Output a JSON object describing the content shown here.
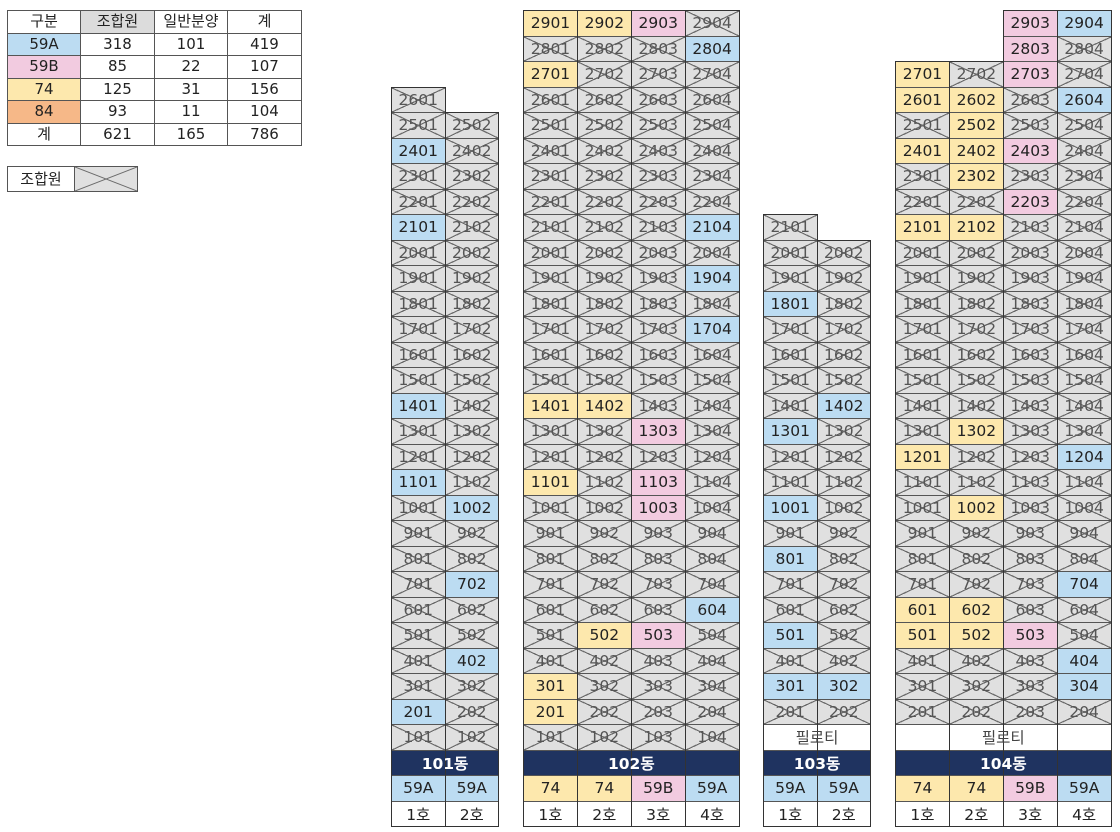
{
  "summary": {
    "header": [
      "구분",
      "조합원",
      "일반분양",
      "계"
    ],
    "rows": [
      [
        "59A",
        "318",
        "101",
        "419"
      ],
      [
        "59B",
        "85",
        "22",
        "107"
      ],
      [
        "74",
        "125",
        "31",
        "156"
      ],
      [
        "84",
        "93",
        "11",
        "104"
      ],
      [
        "계",
        "621",
        "165",
        "786"
      ]
    ]
  },
  "legend": {
    "label": "조합원"
  },
  "colors": {
    "59A": "#bcdcf2",
    "59B": "#f2cbe0",
    "74": "#fde8ad",
    "84": "#f6b888",
    "member": "#e0e0e0",
    "header_hl": "#dcdcdc",
    "building_header": "#1f3360"
  },
  "buildings": [
    {
      "name": "101동",
      "lines": 2,
      "pilotis": "",
      "types": [
        "59A",
        "59A"
      ],
      "houses": [
        "1호",
        "2호"
      ],
      "tops": [
        26,
        25
      ],
      "colored": {
        "2401": "59A",
        "2101": "59A",
        "1401": "59A",
        "1101": "59A",
        "1002": "59A",
        "702": "59A",
        "402": "59A",
        "201": "59A"
      }
    },
    {
      "name": "102동",
      "lines": 4,
      "pilotis": "",
      "types": [
        "74",
        "74",
        "59B",
        "59A"
      ],
      "houses": [
        "1호",
        "2호",
        "3호",
        "4호"
      ],
      "tops": [
        29,
        29,
        29,
        29
      ],
      "colored": {
        "2901": "74",
        "2902": "74",
        "2903": "59B",
        "2804": "59A",
        "2701": "74",
        "2104": "59A",
        "1904": "59A",
        "1704": "59A",
        "1401": "74",
        "1402": "74",
        "1303": "59B",
        "1101": "74",
        "1103": "59B",
        "1003": "59B",
        "604": "59A",
        "502": "74",
        "503": "59B",
        "301": "74",
        "201": "74"
      }
    },
    {
      "name": "103동",
      "lines": 2,
      "pilotis": "필로티",
      "types": [
        "59A",
        "59A"
      ],
      "houses": [
        "1호",
        "2호"
      ],
      "tops": [
        21,
        20
      ],
      "colored": {
        "1801": "59A",
        "1402": "59A",
        "1301": "59A",
        "1001": "59A",
        "801": "59A",
        "501": "59A",
        "301": "59A",
        "302": "59A"
      }
    },
    {
      "name": "104동",
      "lines": 4,
      "pilotis": "필로티",
      "types": [
        "74",
        "74",
        "59B",
        "59A"
      ],
      "houses": [
        "1호",
        "2호",
        "3호",
        "4호"
      ],
      "tops": [
        27,
        27,
        29,
        29
      ],
      "colored": {
        "2903": "59B",
        "2904": "59A",
        "2803": "59B",
        "2701": "74",
        "2703": "59B",
        "2601": "74",
        "2602": "74",
        "2604": "59A",
        "2502": "74",
        "2401": "74",
        "2402": "74",
        "2403": "59B",
        "2302": "74",
        "2203": "59B",
        "2101": "74",
        "2102": "74",
        "1302": "74",
        "1201": "74",
        "1204": "59A",
        "1002": "74",
        "704": "59A",
        "601": "74",
        "602": "74",
        "501": "74",
        "502": "74",
        "503": "59B",
        "404": "59A",
        "304": "59A"
      }
    }
  ]
}
